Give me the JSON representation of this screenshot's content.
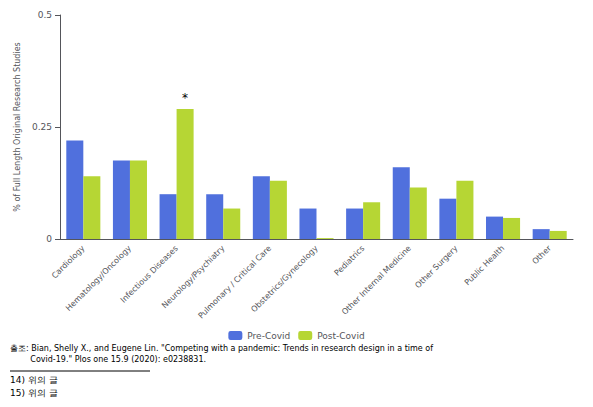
{
  "chart_data": {
    "type": "bar",
    "categories": [
      "Cardiology",
      "Hematology/Oncology",
      "Infectious Diseases",
      "Neurology/Psychiatry",
      "Pulmonary / Critical Care",
      "Obstetrics/Gynecology",
      "Pediatrics",
      "Other Internal Medicine",
      "Other Surgery",
      "Public Health",
      "Other"
    ],
    "series": [
      {
        "name": "Pre-Covid",
        "values": [
          0.22,
          0.175,
          0.1,
          0.1,
          0.14,
          0.068,
          0.068,
          0.16,
          0.09,
          0.05,
          0.022
        ]
      },
      {
        "name": "Post-Covid",
        "values": [
          0.14,
          0.175,
          0.29,
          0.068,
          0.13,
          0.002,
          0.082,
          0.115,
          0.13,
          0.047,
          0.018
        ]
      }
    ],
    "ylabel": "% of Full Length Original Research Studies",
    "ylim": [
      0,
      0.5
    ],
    "yticks": [
      0,
      0.25,
      0.5
    ],
    "grid": false,
    "annotations": [
      {
        "text": "*",
        "series": "Post-Covid",
        "category": "Infectious Diseases"
      }
    ],
    "source": [
      "출조: Bian, Shelly X., and Eugene Lin. \"Competing with a pandemic: Trends in research design in a time of",
      "        Covid-19.\" Plos one 15.9 (2020): e0238831."
    ],
    "footnotes": [
      "14) 위의 글",
      "15) 위의 글"
    ]
  }
}
